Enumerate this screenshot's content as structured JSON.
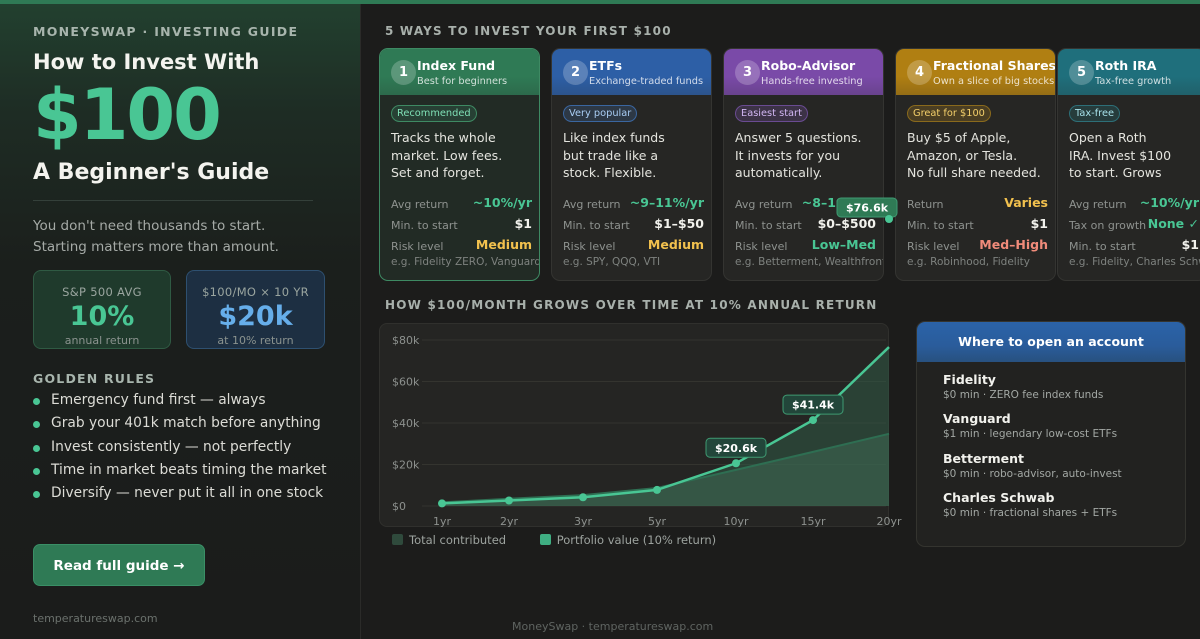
{
  "left": {
    "brand": "MONEYSWAP · INVESTING GUIDE",
    "heading_top": "How to Invest With",
    "heading_big": "$100",
    "heading_sub": "A Beginner's Guide",
    "tagline_1": "You don't need thousands to start.",
    "tagline_2": "Starting matters more than amount.",
    "stats": [
      {
        "label": "S&P 500 AVG",
        "value": "10%",
        "foot": "annual return"
      },
      {
        "label": "$100/MO × 10 YR",
        "value": "$20k",
        "foot": "at 10% return"
      }
    ],
    "rules_title": "GOLDEN RULES",
    "rules": [
      "Emergency fund first — always",
      "Grab your 401k match before anything",
      "Invest consistently — not perfectly",
      "Time in market beats timing the market",
      "Diversify — never put it all in one stock"
    ],
    "cta_label": "Read full guide →",
    "site": "temperatureswap.com"
  },
  "ways_title": "5 WAYS TO INVEST YOUR FIRST $100",
  "cards": [
    {
      "num": "1",
      "title": "Index Fund",
      "subtitle": "Best for beginners",
      "badge": "Recommended",
      "desc": [
        "Tracks the whole",
        "market. Low fees.",
        "Set and forget."
      ],
      "rows": [
        {
          "k": "Avg return",
          "v": "~10%/yr"
        },
        {
          "k": "Min. to start",
          "v": "$1"
        },
        {
          "k": "Risk level",
          "v": "Medium"
        }
      ],
      "example": "e.g. Fidelity ZERO, Vanguard",
      "color": "#2f7a55"
    },
    {
      "num": "2",
      "title": "ETFs",
      "subtitle": "Exchange-traded funds",
      "badge": "Very popular",
      "desc": [
        "Like index funds",
        "but trade like a",
        "stock. Flexible."
      ],
      "rows": [
        {
          "k": "Avg return",
          "v": "~9–11%/yr"
        },
        {
          "k": "Min. to start",
          "v": "$1–$50"
        },
        {
          "k": "Risk level",
          "v": "Medium"
        }
      ],
      "example": "e.g. SPY, QQQ, VTI",
      "color": "#2d5fa6"
    },
    {
      "num": "3",
      "title": "Robo-Advisor",
      "subtitle": "Hands-free investing",
      "badge": "Easiest start",
      "desc": [
        "Answer 5 questions.",
        "It invests for you",
        "automatically."
      ],
      "rows": [
        {
          "k": "Avg return",
          "v": "~8–10%/yr"
        },
        {
          "k": "Min. to start",
          "v": "$0–$500"
        },
        {
          "k": "Risk level",
          "v": "Low–Med"
        }
      ],
      "example": "e.g. Betterment, Wealthfront",
      "color": "#7a4aa8"
    },
    {
      "num": "4",
      "title": "Fractional Shares",
      "subtitle": "Own a slice of big stocks",
      "badge": "Great for $100",
      "desc": [
        "Buy $5 of Apple,",
        "Amazon, or Tesla.",
        "No full share needed."
      ],
      "rows": [
        {
          "k": "Return",
          "v": "Varies"
        },
        {
          "k": "Min. to start",
          "v": "$1"
        },
        {
          "k": "Risk level",
          "v": "Med–High"
        }
      ],
      "example": "e.g. Robinhood, Fidelity",
      "color": "#b07f12"
    },
    {
      "num": "5",
      "title": "Roth IRA",
      "subtitle": "Tax-free growth",
      "badge": "Tax-free",
      "desc": [
        "Open a Roth",
        "IRA. Invest $100",
        "to start. Grows"
      ],
      "rows": [
        {
          "k": "Avg return",
          "v": "~10%/yr"
        },
        {
          "k": "Tax on growth",
          "v": "None ✓"
        },
        {
          "k": "Min. to start",
          "v": "$1"
        }
      ],
      "example": "e.g. Fidelity, Charles Schwab",
      "color": "#1f6f7c"
    }
  ],
  "grow_title": "HOW $100/MONTH GROWS OVER TIME AT 10% ANNUAL RETURN",
  "chart_data": {
    "type": "area",
    "title": "HOW $100/MONTH GROWS OVER TIME AT 10% ANNUAL RETURN",
    "x": [
      "1yr",
      "2yr",
      "3yr",
      "5yr",
      "10yr",
      "15yr",
      "20yr"
    ],
    "x_years": [
      1,
      2,
      3,
      5,
      10,
      15,
      20
    ],
    "series": [
      {
        "name": "Total contributed",
        "values": [
          1200,
          2400,
          3600,
          6000,
          12000,
          18000,
          24000
        ]
      },
      {
        "name": "Portfolio value (10% return)",
        "values": [
          1250,
          2650,
          4200,
          7750,
          20600,
          41400,
          76600
        ]
      }
    ],
    "y_ticks": [
      "$0",
      "$20k",
      "$40k",
      "$60k",
      "$80k"
    ],
    "ylim": [
      0,
      80000
    ],
    "callouts": [
      {
        "label": "$20.6k",
        "index": 4
      },
      {
        "label": "$41.4k",
        "index": 5
      },
      {
        "label": "$76.6k",
        "index": 6
      }
    ],
    "colors": {
      "line": "#49c694",
      "area": "#2f5a45",
      "contributed": "#2a4a3a"
    },
    "legend": "bottom-left",
    "grid": true
  },
  "brokers": {
    "title": "Where to open an account",
    "items": [
      {
        "name": "Fidelity",
        "desc": "$0 min · ZERO fee index funds",
        "bg": "#27352c"
      },
      {
        "name": "Vanguard",
        "desc": "$1 min · legendary low-cost ETFs",
        "bg": "#26303c"
      },
      {
        "name": "Betterment",
        "desc": "$0 min · robo-advisor, auto-invest",
        "bg": "#31293a"
      },
      {
        "name": "Charles Schwab",
        "desc": "$0 min · fractional shares + ETFs",
        "bg": "#36311f"
      }
    ]
  },
  "footer": "MoneySwap · temperatureswap.com"
}
